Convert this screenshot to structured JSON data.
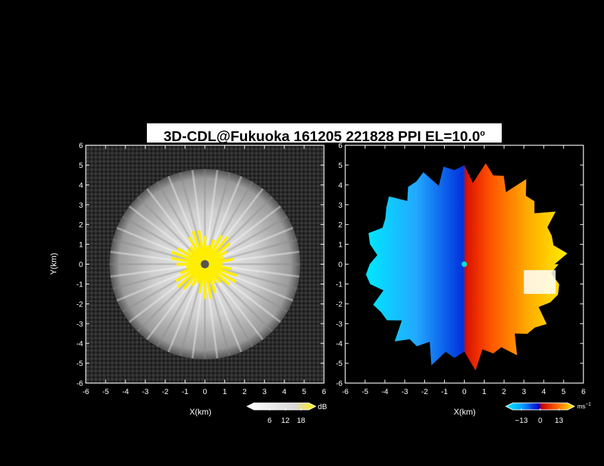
{
  "title": {
    "main": "3D-CDL@Fukuoka 161205 221828 PPI EL=10.0",
    "superscript": "o"
  },
  "chart_data": [
    {
      "type": "heatmap",
      "quantity": "reflectivity / SNR (grayscale)",
      "xlabel": "X(km)",
      "ylabel": "Y(km)",
      "xlim": [
        -6,
        6
      ],
      "ylim": [
        -6,
        6
      ],
      "xticks": [
        -6,
        -5,
        -4,
        -3,
        -2,
        -1,
        0,
        1,
        2,
        3,
        4,
        5,
        6
      ],
      "yticks": [
        -6,
        -5,
        -4,
        -3,
        -2,
        -1,
        0,
        1,
        2,
        3,
        4,
        5,
        6
      ],
      "colorbar": {
        "ticks": [
          6,
          12,
          18
        ],
        "unit": "dB",
        "range": [
          0,
          21
        ]
      },
      "features": {
        "radar_center": [
          0,
          0
        ],
        "echo_radius_km": 4.8,
        "saturated_core_radius_km": 1.5,
        "colors": {
          "low": "#1a1a1a",
          "high": "#f0f0f0",
          "saturated": "#ffee00"
        }
      }
    },
    {
      "type": "heatmap",
      "quantity": "radial velocity",
      "xlabel": "X(km)",
      "ylabel": "",
      "xlim": [
        -6,
        6
      ],
      "ylim": [
        -6,
        6
      ],
      "xticks": [
        -6,
        -5,
        -4,
        -3,
        -2,
        -1,
        0,
        1,
        2,
        3,
        4,
        5,
        6
      ],
      "yticks": [
        -6,
        -5,
        -4,
        -3,
        -2,
        -1,
        0,
        1,
        2,
        3,
        4,
        5,
        6
      ],
      "colorbar": {
        "ticks": [
          -13,
          0,
          13
        ],
        "unit": "ms",
        "unit_exp": "−1",
        "range": [
          -19,
          19
        ]
      },
      "features": {
        "radar_center": [
          0,
          0
        ],
        "echo_radius_km": 5.4,
        "zero_line_x_km": 0,
        "colors": {
          "neg_far": "#00e8ff",
          "neg_near": "#0033cc",
          "pos_near": "#dd1100",
          "pos_far": "#ffee00"
        }
      }
    }
  ]
}
